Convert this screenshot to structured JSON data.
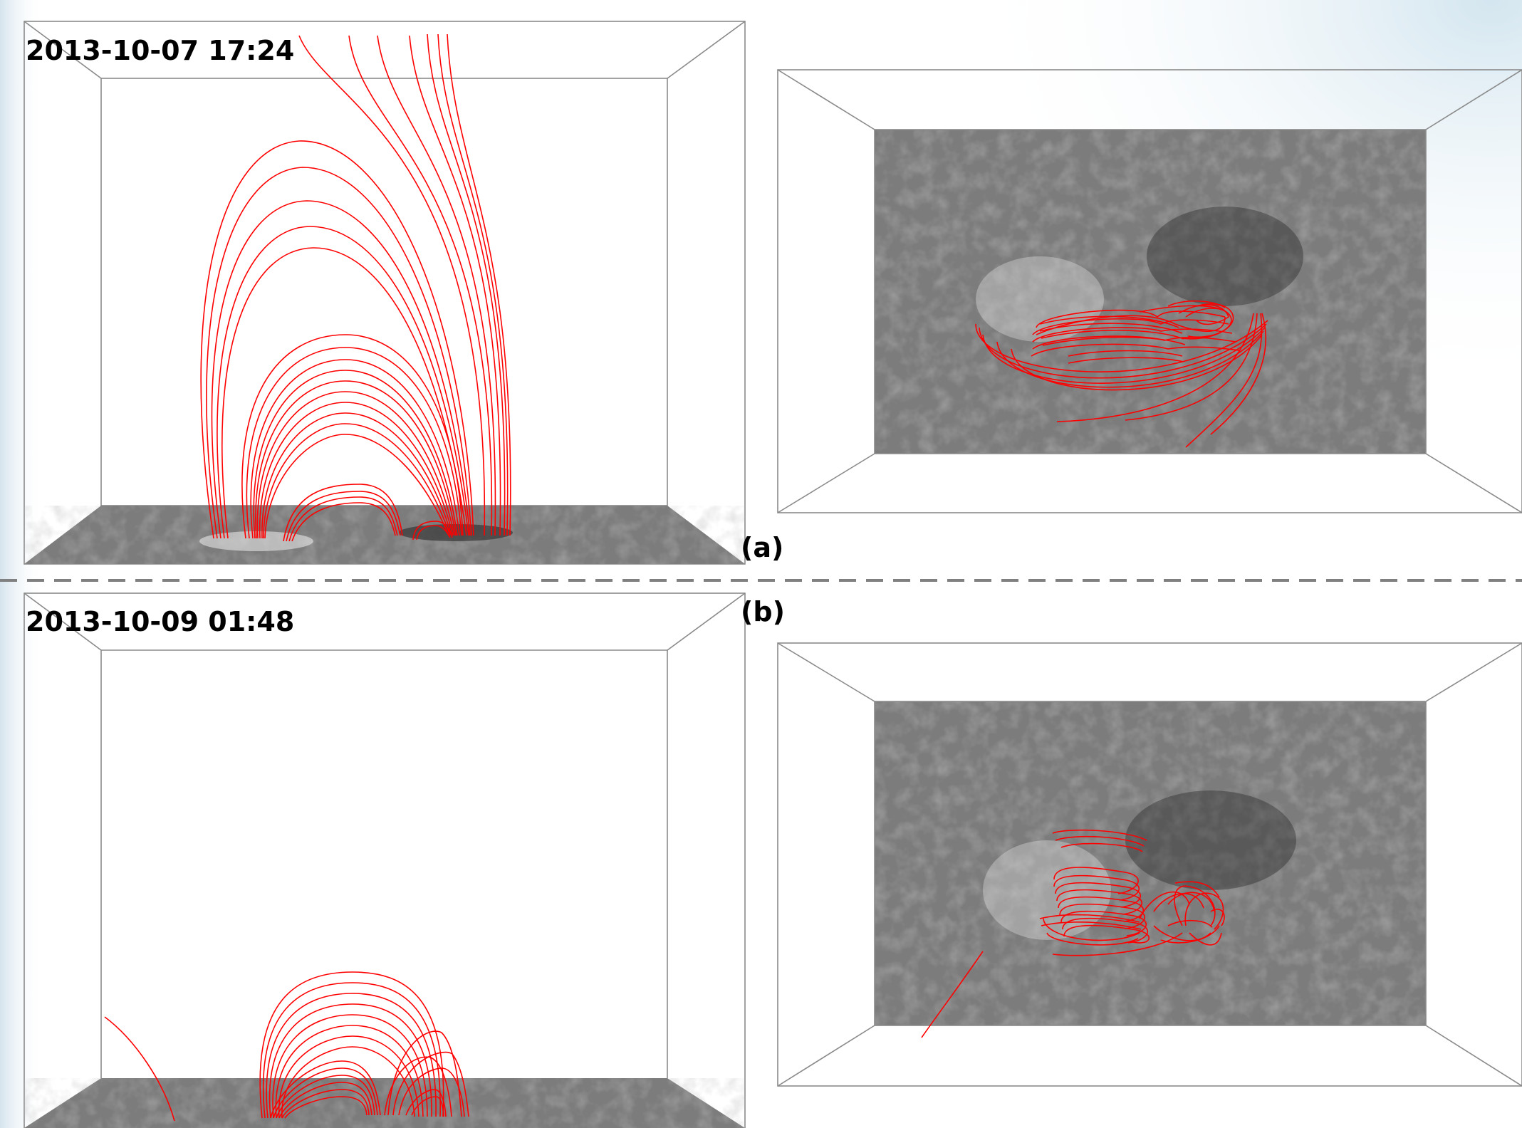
{
  "figure": {
    "divider_color": "#808080",
    "loop_color": "#ff0000",
    "panels": [
      {
        "id": "a",
        "label": "(a)",
        "timestamp": "2013-10-07 17:24"
      },
      {
        "id": "b",
        "label": "(b)",
        "timestamp": "2013-10-09 01:48"
      }
    ]
  }
}
